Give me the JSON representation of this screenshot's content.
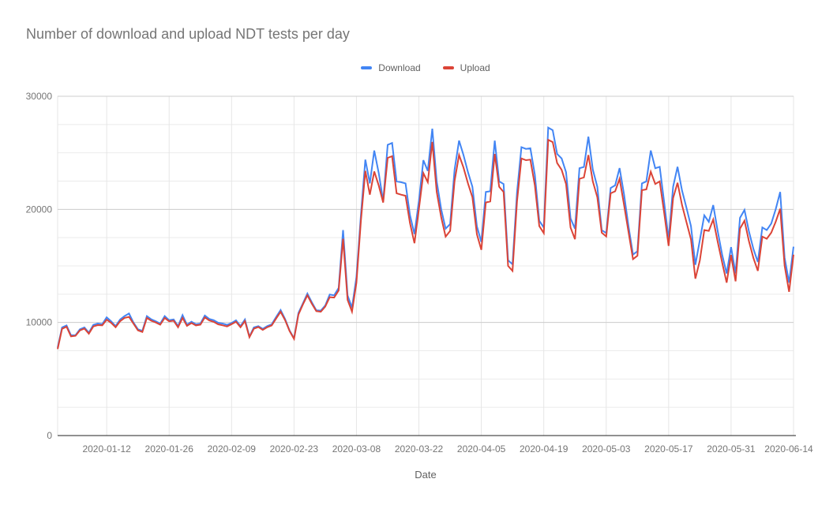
{
  "header": {
    "title": "Number of download and upload NDT tests per day"
  },
  "legend": {
    "items": [
      {
        "label": "Download",
        "color": "#4285f4"
      },
      {
        "label": "Upload",
        "color": "#db4437"
      }
    ]
  },
  "colors": {
    "background": "#ffffff",
    "title_text": "#757575",
    "legend_text": "#616161",
    "tick_label": "#757575",
    "major_grid": "#cccccc",
    "minor_grid": "#ebebeb",
    "vertical_grid": "#e6e6e6",
    "baseline": "#212121"
  },
  "chart_data": {
    "type": "line",
    "title": "Number of download and upload NDT tests per day",
    "xlabel": "Date",
    "ylabel": "",
    "x_start_date": "2020-01-01",
    "x_end_date": "2020-06-14",
    "ylim": [
      0,
      30000
    ],
    "y_major_ticks": [
      0,
      10000,
      20000,
      30000
    ],
    "y_minor_step": 2500,
    "grid": "on",
    "legend_position": "top-center",
    "x_tick_labels": [
      "2020-01-12",
      "2020-01-26",
      "2020-02-09",
      "2020-02-23",
      "2020-03-08",
      "2020-03-22",
      "2020-04-05",
      "2020-04-19",
      "2020-05-03",
      "2020-05-17",
      "2020-05-31",
      "2020-06-14"
    ],
    "x_tick_day_indices": [
      11,
      25,
      39,
      53,
      67,
      81,
      95,
      109,
      123,
      137,
      151,
      165
    ],
    "series": [
      {
        "name": "Download",
        "color": "#4285f4",
        "values": [
          7770,
          9560,
          9730,
          8870,
          8870,
          9400,
          9560,
          9100,
          9790,
          9910,
          9850,
          10450,
          10100,
          9680,
          10260,
          10560,
          10790,
          10000,
          9400,
          9260,
          10560,
          10280,
          10100,
          9900,
          10560,
          10200,
          10260,
          9680,
          10650,
          9800,
          10070,
          9840,
          9900,
          10610,
          10310,
          10200,
          9980,
          9900,
          9790,
          9950,
          10190,
          9680,
          10260,
          8750,
          9560,
          9680,
          9440,
          9680,
          9840,
          10490,
          11100,
          10300,
          9300,
          8600,
          10840,
          11700,
          12560,
          11780,
          11080,
          11050,
          11500,
          12470,
          12400,
          13050,
          18170,
          12400,
          11310,
          14000,
          19500,
          24400,
          22300,
          25200,
          23200,
          20730,
          25700,
          25870,
          22470,
          22400,
          22300,
          19500,
          17820,
          20730,
          24350,
          23400,
          27130,
          22470,
          20000,
          18290,
          18700,
          23500,
          26080,
          24800,
          23290,
          22000,
          18500,
          17120,
          21540,
          21600,
          26080,
          22470,
          22240,
          15500,
          15140,
          21500,
          25500,
          25350,
          25400,
          23050,
          18990,
          18400,
          27230,
          27000,
          24900,
          24500,
          23290,
          19200,
          18290,
          23640,
          23750,
          26430,
          23520,
          22000,
          18170,
          17900,
          21890,
          22120,
          23650,
          21300,
          18500,
          16000,
          16300,
          22300,
          22470,
          25200,
          23640,
          23760,
          20610,
          17360,
          22000,
          23760,
          21660,
          20150,
          18520,
          15100,
          17300,
          19470,
          18900,
          20380,
          18060,
          16000,
          14330,
          16660,
          14330,
          19250,
          19950,
          18060,
          16500,
          15350,
          18400,
          18170,
          18750,
          20000,
          21540,
          15730,
          13520,
          16700
        ]
      },
      {
        "name": "Upload",
        "color": "#db4437",
        "values": [
          7650,
          9440,
          9620,
          8770,
          8820,
          9300,
          9460,
          9010,
          9650,
          9770,
          9750,
          10250,
          9960,
          9580,
          10110,
          10400,
          10490,
          9900,
          9300,
          9160,
          10400,
          10150,
          10000,
          9800,
          10400,
          10100,
          10160,
          9580,
          10400,
          9700,
          9950,
          9740,
          9800,
          10450,
          10180,
          10050,
          9840,
          9750,
          9650,
          9850,
          10060,
          9580,
          10120,
          8700,
          9450,
          9600,
          9340,
          9580,
          9740,
          10350,
          10950,
          10200,
          9250,
          8550,
          10700,
          11600,
          12400,
          11650,
          11000,
          10950,
          11400,
          12240,
          12200,
          12820,
          17400,
          12000,
          10960,
          13500,
          19000,
          23400,
          21300,
          23350,
          22100,
          20600,
          24550,
          24700,
          21420,
          21300,
          21200,
          18800,
          17010,
          20000,
          23200,
          22400,
          25970,
          21540,
          19300,
          17590,
          18100,
          22500,
          24800,
          23700,
          22300,
          21080,
          17800,
          16420,
          20610,
          20700,
          24900,
          22000,
          21540,
          15000,
          14560,
          20700,
          24500,
          24350,
          24400,
          22120,
          18520,
          17900,
          26150,
          25950,
          24100,
          23500,
          22240,
          18400,
          17360,
          22700,
          22820,
          24800,
          22470,
          21080,
          17940,
          17600,
          21420,
          21600,
          22700,
          20380,
          18000,
          15600,
          15900,
          21700,
          21770,
          23330,
          22240,
          22470,
          19680,
          16770,
          21000,
          22350,
          20380,
          18870,
          17360,
          13870,
          15500,
          18170,
          18100,
          19100,
          17120,
          15300,
          13520,
          15960,
          13640,
          18300,
          19000,
          17200,
          15700,
          14560,
          17590,
          17400,
          17940,
          18900,
          20050,
          15030,
          12710,
          16000
        ]
      }
    ]
  }
}
